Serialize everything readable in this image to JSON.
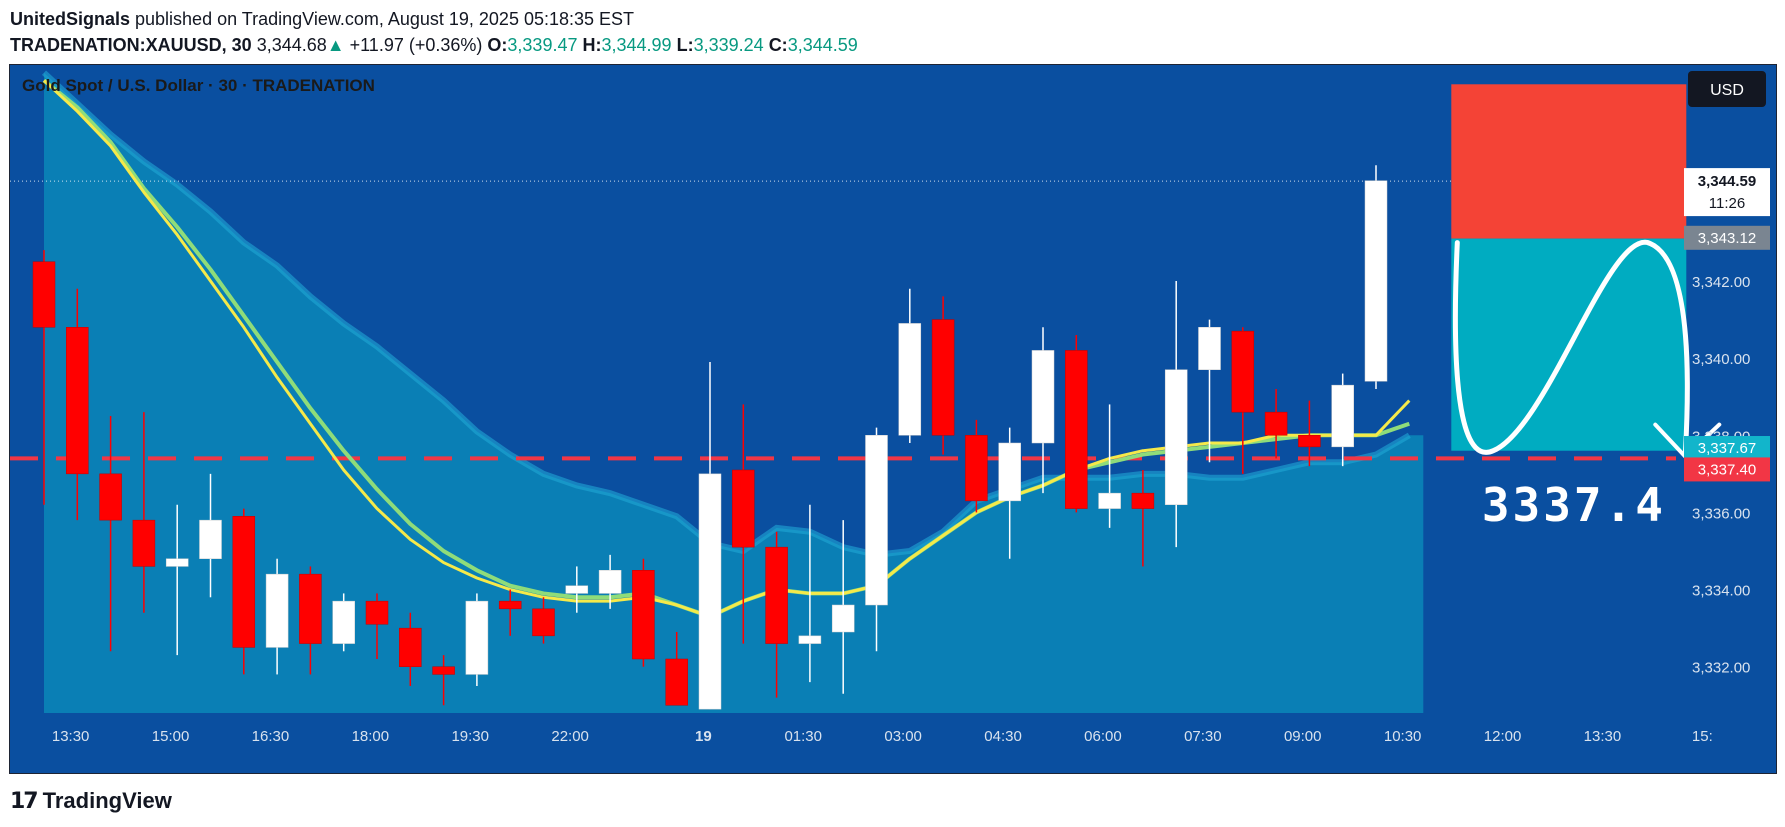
{
  "header": {
    "author": "UnitedSignals",
    "published_text": " published on TradingView.com, August 19, 2025 05:18:35 EST",
    "symbol": "TRADENATION:XAUUSD, 30",
    "last_price": "3,344.68",
    "change": "+11.97 (+0.36%)",
    "o_label": "O:",
    "o_value": "3,339.47",
    "h_label": "H:",
    "h_value": "3,344.99",
    "l_label": "L:",
    "l_value": "3,339.24",
    "c_label": "C:",
    "c_value": "3,344.59"
  },
  "footer": {
    "brand": "TradingView"
  },
  "colors": {
    "background": "#0a4fa0",
    "up_candle": "#ffffff",
    "down_candle": "#ff0000",
    "ema_fast": "#f5e94a",
    "ema_slow": "#8fdc7a",
    "stop_zone": "#f44336",
    "target_zone": "#00acc1",
    "level_line": "#f23645"
  },
  "chart_data": {
    "type": "candlestick",
    "title": "Gold Spot / U.S. Dollar · 30 · TRADENATION",
    "currency_button": "USD",
    "ylim": [
      3330.8,
      3347.6
    ],
    "y_ticks": [
      "3,332.00",
      "3,334.00",
      "3,336.00",
      "3,338.00",
      "3,340.00",
      "3,342.00"
    ],
    "y_tick_values": [
      3332,
      3334,
      3336,
      3338,
      3340,
      3342
    ],
    "x_ticks": [
      "13:30",
      "15:00",
      "16:30",
      "18:00",
      "19:30",
      "22:00",
      "19",
      "01:30",
      "03:00",
      "04:30",
      "06:00",
      "07:30",
      "09:00",
      "10:30",
      "12:00",
      "13:30",
      "15:"
    ],
    "x_tick_index": [
      0.8,
      3.8,
      6.8,
      9.8,
      12.8,
      15.8,
      19.8,
      22.8,
      25.8,
      28.8,
      31.8,
      34.8,
      37.8,
      40.8,
      43.8,
      46.8,
      49.8
    ],
    "candles": [
      {
        "o": 3342.5,
        "h": 3342.8,
        "l": 3336.2,
        "c": 3340.8
      },
      {
        "o": 3340.8,
        "h": 3341.8,
        "l": 3335.8,
        "c": 3337.0
      },
      {
        "o": 3337.0,
        "h": 3338.5,
        "l": 3332.4,
        "c": 3335.8
      },
      {
        "o": 3335.8,
        "h": 3338.6,
        "l": 3333.4,
        "c": 3334.6
      },
      {
        "o": 3334.6,
        "h": 3336.2,
        "l": 3332.3,
        "c": 3334.8
      },
      {
        "o": 3334.8,
        "h": 3337.0,
        "l": 3333.8,
        "c": 3335.8
      },
      {
        "o": 3335.9,
        "h": 3336.1,
        "l": 3331.8,
        "c": 3332.5
      },
      {
        "o": 3332.5,
        "h": 3334.8,
        "l": 3331.8,
        "c": 3334.4
      },
      {
        "o": 3334.4,
        "h": 3334.6,
        "l": 3331.8,
        "c": 3332.6
      },
      {
        "o": 3332.6,
        "h": 3333.9,
        "l": 3332.4,
        "c": 3333.7
      },
      {
        "o": 3333.7,
        "h": 3333.9,
        "l": 3332.2,
        "c": 3333.1
      },
      {
        "o": 3333.0,
        "h": 3333.4,
        "l": 3331.5,
        "c": 3332.0
      },
      {
        "o": 3332.0,
        "h": 3332.3,
        "l": 3331.0,
        "c": 3331.8
      },
      {
        "o": 3331.8,
        "h": 3333.9,
        "l": 3331.5,
        "c": 3333.7
      },
      {
        "o": 3333.7,
        "h": 3334.0,
        "l": 3332.8,
        "c": 3333.5
      },
      {
        "o": 3333.5,
        "h": 3333.8,
        "l": 3332.6,
        "c": 3332.8
      },
      {
        "o": 3333.9,
        "h": 3334.6,
        "l": 3333.4,
        "c": 3334.1
      },
      {
        "o": 3333.9,
        "h": 3334.9,
        "l": 3333.5,
        "c": 3334.5
      },
      {
        "o": 3334.5,
        "h": 3334.8,
        "l": 3332.0,
        "c": 3332.2
      },
      {
        "o": 3332.2,
        "h": 3332.9,
        "l": 3331.0,
        "c": 3331.0
      },
      {
        "o": 3330.9,
        "h": 3339.9,
        "l": 3330.9,
        "c": 3337.0
      },
      {
        "o": 3337.1,
        "h": 3338.8,
        "l": 3332.6,
        "c": 3335.1
      },
      {
        "o": 3335.1,
        "h": 3335.5,
        "l": 3331.2,
        "c": 3332.6
      },
      {
        "o": 3332.6,
        "h": 3336.2,
        "l": 3331.6,
        "c": 3332.8
      },
      {
        "o": 3332.9,
        "h": 3335.8,
        "l": 3331.3,
        "c": 3333.6
      },
      {
        "o": 3333.6,
        "h": 3338.2,
        "l": 3332.4,
        "c": 3338.0
      },
      {
        "o": 3338.0,
        "h": 3341.8,
        "l": 3337.8,
        "c": 3340.9
      },
      {
        "o": 3341.0,
        "h": 3341.6,
        "l": 3337.5,
        "c": 3338.0
      },
      {
        "o": 3338.0,
        "h": 3338.4,
        "l": 3336.0,
        "c": 3336.3
      },
      {
        "o": 3336.3,
        "h": 3338.2,
        "l": 3334.8,
        "c": 3337.8
      },
      {
        "o": 3337.8,
        "h": 3340.8,
        "l": 3336.5,
        "c": 3340.2
      },
      {
        "o": 3340.2,
        "h": 3340.6,
        "l": 3336.0,
        "c": 3336.1
      },
      {
        "o": 3336.1,
        "h": 3338.8,
        "l": 3335.6,
        "c": 3336.5
      },
      {
        "o": 3336.5,
        "h": 3337.1,
        "l": 3334.6,
        "c": 3336.1
      },
      {
        "o": 3336.2,
        "h": 3342.0,
        "l": 3335.1,
        "c": 3339.7
      },
      {
        "o": 3339.7,
        "h": 3341.0,
        "l": 3337.3,
        "c": 3340.8
      },
      {
        "o": 3340.7,
        "h": 3340.8,
        "l": 3337.0,
        "c": 3338.6
      },
      {
        "o": 3338.6,
        "h": 3339.2,
        "l": 3337.4,
        "c": 3338.0
      },
      {
        "o": 3338.0,
        "h": 3338.9,
        "l": 3337.2,
        "c": 3337.7
      },
      {
        "o": 3337.7,
        "h": 3339.6,
        "l": 3337.2,
        "c": 3339.3
      },
      {
        "o": 3339.4,
        "h": 3345.0,
        "l": 3339.2,
        "c": 3344.6
      }
    ],
    "ema_fast": [
      3347.2,
      3346.4,
      3345.5,
      3344.3,
      3343.2,
      3342.0,
      3340.8,
      3339.5,
      3338.3,
      3337.1,
      3336.1,
      3335.3,
      3334.7,
      3334.3,
      3334.0,
      3333.8,
      3333.7,
      3333.7,
      3333.8,
      3333.6,
      3333.3,
      3333.7,
      3334.0,
      3333.9,
      3333.9,
      3334.1,
      3334.8,
      3335.4,
      3336.0,
      3336.4,
      3336.7,
      3337.1,
      3337.4,
      3337.6,
      3337.7,
      3337.8,
      3337.8,
      3338.0,
      3338.0,
      3338.0,
      3338.0,
      3338.9
    ],
    "ema_slow": [
      3347.2,
      3346.5,
      3345.6,
      3344.4,
      3343.4,
      3342.3,
      3341.1,
      3339.9,
      3338.7,
      3337.6,
      3336.6,
      3335.7,
      3335.0,
      3334.5,
      3334.1,
      3333.9,
      3333.8,
      3333.8,
      3333.9,
      3333.6,
      3333.3,
      3333.7,
      3334.0,
      3333.9,
      3333.9,
      3334.1,
      3334.8,
      3335.4,
      3336.0,
      3336.4,
      3336.7,
      3337.1,
      3337.3,
      3337.5,
      3337.6,
      3337.7,
      3337.8,
      3337.9,
      3338.0,
      3338.0,
      3338.0,
      3338.3
    ],
    "area_top": [
      3347.4,
      3346.6,
      3345.8,
      3345.1,
      3344.5,
      3343.8,
      3343.0,
      3342.4,
      3341.6,
      3340.9,
      3340.3,
      3339.6,
      3338.9,
      3338.1,
      3337.5,
      3337.0,
      3336.7,
      3336.5,
      3336.2,
      3335.9,
      3335.2,
      3335.0,
      3335.6,
      3335.5,
      3335.1,
      3334.9,
      3335.0,
      3335.5,
      3336.3,
      3336.6,
      3336.9,
      3336.9,
      3336.9,
      3337.0,
      3337.0,
      3336.9,
      3336.9,
      3337.1,
      3337.3,
      3337.3,
      3337.5,
      3338.0
    ],
    "level": {
      "value": 3337.4,
      "label": "3,337.40",
      "big_label": "3337.4"
    },
    "last_price_label": {
      "value": 3344.59,
      "label": "3,344.59",
      "countdown": "11:26"
    },
    "grey_label": {
      "value": 3343.12,
      "label": "3,343.12"
    },
    "cyan_label": {
      "value": 3337.67,
      "label": "3,337.67"
    },
    "position_box": {
      "top": 3347.1,
      "entry": 3343.1,
      "bottom": 3337.6
    }
  }
}
